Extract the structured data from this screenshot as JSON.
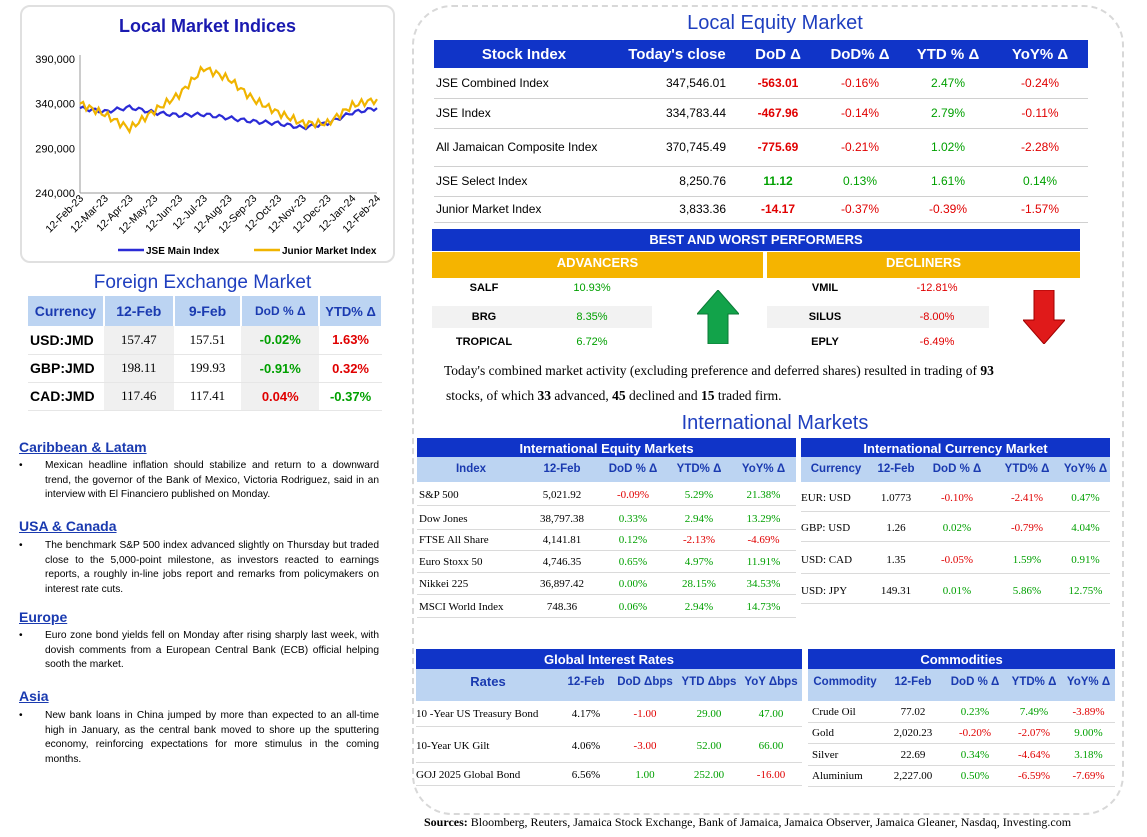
{
  "chart": {
    "title": "Local Market Indices",
    "ytick_labels": [
      "390,000",
      "340,000",
      "290,000",
      "240,000"
    ],
    "xtick_labels": [
      "12-Feb-23",
      "12-Mar-23",
      "12-Apr-23",
      "12-May-23",
      "12-Jun-23",
      "12-Jul-23",
      "12-Aug-23",
      "12-Sep-23",
      "12-Oct-23",
      "12-Nov-23",
      "12-Dec-23",
      "12-Jan-24",
      "12-Feb-24"
    ],
    "legend": [
      "JSE Main Index",
      "Junior Market Index"
    ]
  },
  "chart_data": {
    "type": "line",
    "title": "Local Market Indices",
    "xlabel": "",
    "ylabel": "",
    "ylim": [
      240000,
      390000
    ],
    "x": [
      "12-Feb-23",
      "12-Mar-23",
      "12-Apr-23",
      "12-May-23",
      "12-Jun-23",
      "12-Jul-23",
      "12-Aug-23",
      "12-Sep-23",
      "12-Oct-23",
      "12-Nov-23",
      "12-Dec-23",
      "12-Jan-24",
      "12-Feb-24"
    ],
    "series": [
      {
        "name": "JSE Main Index",
        "color": "#2b2bd6",
        "values": [
          335000,
          331000,
          336000,
          330000,
          327000,
          328000,
          324000,
          320000,
          318000,
          313000,
          318000,
          330000,
          335000
        ]
      },
      {
        "name": "Junior Market Index",
        "color": "#f0b400",
        "values": [
          340000,
          328000,
          312000,
          332000,
          350000,
          380000,
          368000,
          345000,
          330000,
          318000,
          318000,
          338000,
          345000
        ]
      }
    ],
    "grid": false,
    "legend_position": "bottom"
  },
  "fx": {
    "title": "Foreign Exchange Market",
    "headers": [
      "Currency",
      "12-Feb",
      "9-Feb",
      "DoD % Δ",
      "YTD% Δ"
    ],
    "rows": [
      {
        "currency": "USD:JMD",
        "d1": "157.47",
        "d2": "157.51",
        "dod": "-0.02%",
        "ytd": "1.63%"
      },
      {
        "currency": "GBP:JMD",
        "d1": "198.11",
        "d2": "199.93",
        "dod": "-0.91%",
        "ytd": "0.32%"
      },
      {
        "currency": "CAD:JMD",
        "d1": "117.46",
        "d2": "117.41",
        "dod": "0.04%",
        "ytd": "-0.37%"
      }
    ]
  },
  "news": [
    {
      "heading": "Caribbean & Latam",
      "text": "Mexican headline inflation should stabilize and return to a downward trend, the governor of the Bank of Mexico, Victoria Rodriguez, said in an interview with El Financiero published on Monday."
    },
    {
      "heading": "USA & Canada",
      "text": "The benchmark S&P 500 index advanced slightly on Thursday but traded close to the 5,000-point milestone, as investors reacted to earnings reports, a roughly in-line jobs report and remarks from policymakers on interest rate cuts."
    },
    {
      "heading": "Europe",
      "text": "Euro zone bond yields fell on Monday after rising sharply last week, with dovish comments from a European Central Bank (ECB) official helping sooth the market."
    },
    {
      "heading": "Asia",
      "text": "New bank loans in China jumped by more than expected to an all-time high in January, as the central bank moved to shore up the sputtering economy, reinforcing expectations for more stimulus in the coming months."
    }
  ],
  "bullet": "•",
  "equity": {
    "title": "Local Equity Market",
    "headers": [
      "Stock Index",
      "Today's close",
      "DoD  Δ",
      "DoD% Δ",
      "YTD % Δ",
      "YoY% Δ"
    ],
    "rows": [
      {
        "name": "JSE Combined Index",
        "close": "347,546.01",
        "dod": "-563.01",
        "dodp": "-0.16%",
        "ytd": "2.47%",
        "yoy": "-0.24%"
      },
      {
        "name": "JSE Index",
        "close": "334,783.44",
        "dod": "-467.96",
        "dodp": "-0.14%",
        "ytd": "2.79%",
        "yoy": "-0.11%"
      },
      {
        "name": "All Jamaican Composite Index",
        "close": "370,745.49",
        "dod": "-775.69",
        "dodp": "-0.21%",
        "ytd": "1.02%",
        "yoy": "-2.28%"
      },
      {
        "name": "JSE Select Index",
        "close": "8,250.76",
        "dod": "11.12",
        "dodp": "0.13%",
        "ytd": "1.61%",
        "yoy": "0.14%"
      },
      {
        "name": "Junior Market Index",
        "close": "3,833.36",
        "dod": "-14.17",
        "dodp": "-0.37%",
        "ytd": "-0.39%",
        "yoy": "-1.57%"
      }
    ]
  },
  "performers": {
    "title": "BEST AND WORST PERFORMERS",
    "advancers_label": "ADVANCERS",
    "decliners_label": "DECLINERS",
    "advancers": [
      {
        "name": "SALF",
        "value": "10.93%"
      },
      {
        "name": "BRG",
        "value": "8.35%"
      },
      {
        "name": "TROPICAL",
        "value": "6.72%"
      }
    ],
    "decliners": [
      {
        "name": "VMIL",
        "value": "-12.81%"
      },
      {
        "name": "SILUS",
        "value": "-8.00%"
      },
      {
        "name": "EPLY",
        "value": "-6.49%"
      }
    ]
  },
  "summary": {
    "p1": "Today's combined market activity (excluding preference and deferred shares) resulted in trading of ",
    "n_traded": "93",
    "p2": "stocks, of which ",
    "n_adv": "33",
    "p3": " advanced, ",
    "n_dec": "45",
    "p4": " declined and ",
    "n_firm": "15",
    "p5": " traded firm."
  },
  "intl": {
    "title": "International Markets",
    "equity": {
      "title": "International Equity Markets",
      "headers": [
        "Index",
        "12-Feb",
        "DoD % Δ",
        "YTD% Δ",
        "YoY% Δ"
      ],
      "rows": [
        {
          "name": "S&P 500",
          "v": "5,021.92",
          "dod": "-0.09%",
          "ytd": "5.29%",
          "yoy": "21.38%"
        },
        {
          "name": "Dow Jones",
          "v": "38,797.38",
          "dod": "0.33%",
          "ytd": "2.94%",
          "yoy": "13.29%"
        },
        {
          "name": "FTSE All Share",
          "v": "4,141.81",
          "dod": "0.12%",
          "ytd": "-2.13%",
          "yoy": "-4.69%"
        },
        {
          "name": "Euro Stoxx 50",
          "v": "4,746.35",
          "dod": "0.65%",
          "ytd": "4.97%",
          "yoy": "11.91%"
        },
        {
          "name": "Nikkei 225",
          "v": "36,897.42",
          "dod": "0.00%",
          "ytd": "28.15%",
          "yoy": "34.53%"
        },
        {
          "name": "MSCI World Index",
          "v": "748.36",
          "dod": "0.06%",
          "ytd": "2.94%",
          "yoy": "14.73%"
        }
      ]
    },
    "currency": {
      "title": "International Currency Market",
      "headers": [
        "Currency",
        "12-Feb",
        "DoD % Δ",
        "YTD% Δ",
        "YoY% Δ"
      ],
      "rows": [
        {
          "name": "EUR: USD",
          "v": "1.0773",
          "dod": "-0.10%",
          "ytd": "-2.41%",
          "yoy": "0.47%"
        },
        {
          "name": "GBP: USD",
          "v": "1.26",
          "dod": "0.02%",
          "ytd": "-0.79%",
          "yoy": "4.04%"
        },
        {
          "name": "USD: CAD",
          "v": "1.35",
          "dod": "-0.05%",
          "ytd": "1.59%",
          "yoy": "0.91%"
        },
        {
          "name": "USD: JPY",
          "v": "149.31",
          "dod": "0.01%",
          "ytd": "5.86%",
          "yoy": "12.75%"
        }
      ]
    },
    "rates": {
      "title": "Global Interest Rates",
      "headers": [
        "Rates",
        "12-Feb",
        "DoD Δbps",
        "YTD Δbps",
        "YoY Δbps"
      ],
      "rows": [
        {
          "name": "10 -Year US Treasury Bond",
          "v": "4.17%",
          "dod": "-1.00",
          "ytd": "29.00",
          "yoy": "47.00"
        },
        {
          "name": "10-Year UK Gilt",
          "v": "4.06%",
          "dod": "-3.00",
          "ytd": "52.00",
          "yoy": "66.00"
        },
        {
          "name": "GOJ 2025 Global Bond",
          "v": "6.56%",
          "dod": "1.00",
          "ytd": "252.00",
          "yoy": "-16.00"
        }
      ]
    },
    "commodities": {
      "title": "Commodities",
      "headers": [
        "Commodity",
        "12-Feb",
        "DoD % Δ",
        "YTD% Δ",
        "YoY% Δ"
      ],
      "rows": [
        {
          "name": "Crude Oil",
          "v": "77.02",
          "dod": "0.23%",
          "ytd": "7.49%",
          "yoy": "-3.89%"
        },
        {
          "name": "Gold",
          "v": "2,020.23",
          "dod": "-0.20%",
          "ytd": "-2.07%",
          "yoy": "9.00%"
        },
        {
          "name": "Silver",
          "v": "22.69",
          "dod": "0.34%",
          "ytd": "-4.64%",
          "yoy": "3.18%"
        },
        {
          "name": "Aluminium",
          "v": "2,227.00",
          "dod": "0.50%",
          "ytd": "-6.59%",
          "yoy": "-7.69%"
        }
      ]
    }
  },
  "sources": {
    "label": "Sources:",
    "text": " Bloomberg, Reuters, Jamaica Stock Exchange, Bank of Jamaica, Jamaica Observer, Jamaica Gleaner, Nasdaq, Investing.com"
  },
  "colors": {
    "positive": "#00a000",
    "negative": "#e00000",
    "header_blue": "#1034c8",
    "light_blue": "#bcd4f2",
    "amber": "#f5b400"
  }
}
